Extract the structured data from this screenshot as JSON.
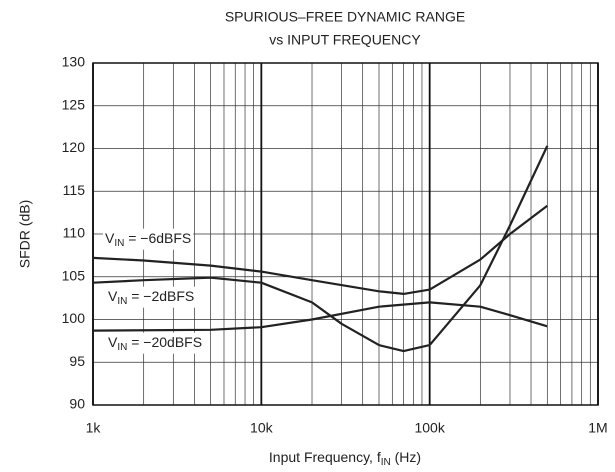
{
  "chart_data": {
    "type": "line",
    "title": "SPURIOUS–FREE DYNAMIC RANGE",
    "subtitle": "vs INPUT FREQUENCY",
    "y_label": "SFDR (dB)",
    "x_label": {
      "text": "Input Frequency, f",
      "sub": "IN",
      "tail": " (Hz)"
    },
    "log_x": true,
    "grid": true,
    "xlim": [
      1000,
      1000000
    ],
    "xticks": [
      {
        "value": 1000,
        "label": "1k"
      },
      {
        "value": 10000,
        "label": "10k"
      },
      {
        "value": 100000,
        "label": "100k"
      },
      {
        "value": 1000000,
        "label": "1M"
      }
    ],
    "xminor": [
      2000,
      3000,
      4000,
      5000,
      6000,
      7000,
      8000,
      9000,
      20000,
      30000,
      40000,
      50000,
      60000,
      70000,
      80000,
      90000,
      200000,
      300000,
      400000,
      500000,
      600000,
      700000,
      800000,
      900000
    ],
    "ylim": [
      90,
      130
    ],
    "yticks": [
      90,
      95,
      100,
      105,
      110,
      115,
      120,
      125,
      130
    ],
    "series": [
      {
        "label": {
          "text": "V",
          "sub": "IN",
          "tail": " = −6dBFS"
        },
        "color": "#222222",
        "x": [
          1000,
          2000,
          5000,
          10000,
          20000,
          50000,
          70000,
          100000,
          200000,
          300000,
          500000
        ],
        "values": [
          107.2,
          106.9,
          106.3,
          105.6,
          104.6,
          103.3,
          103.0,
          103.5,
          107,
          110,
          113.3
        ]
      },
      {
        "label": {
          "text": "V",
          "sub": "IN",
          "tail": " = −2dBFS"
        },
        "color": "#222222",
        "x": [
          1000,
          2000,
          5000,
          10000,
          20000,
          30000,
          50000,
          70000,
          100000,
          200000,
          300000,
          500000
        ],
        "values": [
          104.3,
          104.6,
          104.9,
          104.3,
          102,
          99.5,
          97,
          96.3,
          97,
          104,
          111,
          120.3
        ]
      },
      {
        "label": {
          "text": "V",
          "sub": "IN",
          "tail": " = −20dBFS"
        },
        "color": "#222222",
        "x": [
          1000,
          5000,
          10000,
          20000,
          50000,
          100000,
          200000,
          300000,
          500000
        ],
        "values": [
          98.7,
          98.8,
          99.1,
          100,
          101.5,
          102,
          101.5,
          100.5,
          99.2
        ]
      }
    ]
  }
}
